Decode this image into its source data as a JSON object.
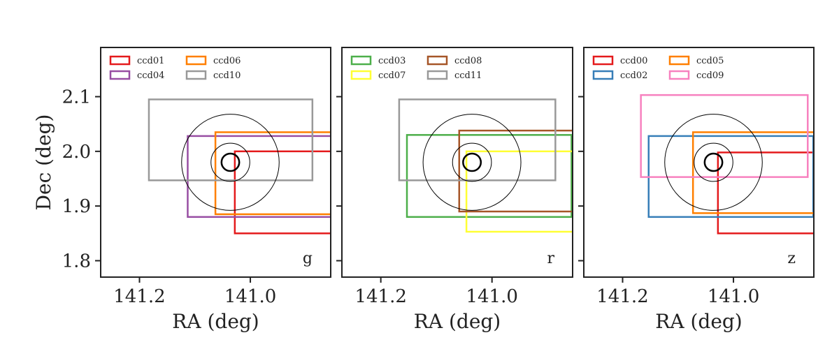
{
  "chart_data": [
    {
      "type": "footprint",
      "band": "g",
      "xlabel": "RA (deg)",
      "ylabel": "Dec (deg)",
      "xlim": [
        141.27,
        140.855
      ],
      "ylim": [
        1.77,
        2.19
      ],
      "xticks": [
        141.2,
        141.0
      ],
      "xtick_labels": [
        "141.2",
        "141.0"
      ],
      "yticks": [
        1.8,
        1.9,
        2.0,
        2.1
      ],
      "ytick_labels": [
        "1.8",
        "1.9",
        "2.0",
        "2.1"
      ],
      "center": {
        "ra": 141.036,
        "dec": 1.98
      },
      "circles_deg": [
        0.016,
        0.035,
        0.088
      ],
      "legend": {
        "position": "top-left",
        "ncol": 2
      },
      "ccds": [
        {
          "name": "ccd01",
          "color": "#e41a1c",
          "ra": [
            141.028,
            140.845
          ],
          "dec": [
            1.85,
            2.0
          ]
        },
        {
          "name": "ccd04",
          "color": "#984ea3",
          "ra": [
            141.113,
            140.845
          ],
          "dec": [
            1.88,
            2.028
          ]
        },
        {
          "name": "ccd06",
          "color": "#ff7f00",
          "ra": [
            141.063,
            140.845
          ],
          "dec": [
            1.885,
            2.035
          ]
        },
        {
          "name": "ccd10",
          "color": "#999999",
          "ra": [
            141.183,
            140.888
          ],
          "dec": [
            1.947,
            2.095
          ]
        }
      ]
    },
    {
      "type": "footprint",
      "band": "r",
      "xlabel": "RA (deg)",
      "ylabel": "",
      "xlim": [
        141.27,
        140.855
      ],
      "ylim": [
        1.77,
        2.19
      ],
      "xticks": [
        141.2,
        141.0
      ],
      "xtick_labels": [
        "141.2",
        "141.0"
      ],
      "yticks": [
        1.8,
        1.9,
        2.0,
        2.1
      ],
      "ytick_labels": [],
      "center": {
        "ra": 141.036,
        "dec": 1.98
      },
      "circles_deg": [
        0.016,
        0.035,
        0.088
      ],
      "legend": {
        "position": "top-left",
        "ncol": 2
      },
      "ccds": [
        {
          "name": "ccd03",
          "color": "#4daf4a",
          "ra": [
            141.153,
            140.857
          ],
          "dec": [
            1.88,
            2.03
          ]
        },
        {
          "name": "ccd07",
          "color": "#ffff33",
          "ra": [
            141.046,
            140.845
          ],
          "dec": [
            1.853,
            2.0
          ]
        },
        {
          "name": "ccd08",
          "color": "#a65628",
          "ra": [
            141.059,
            140.845
          ],
          "dec": [
            1.89,
            2.038
          ]
        },
        {
          "name": "ccd11",
          "color": "#999999",
          "ra": [
            141.167,
            140.886
          ],
          "dec": [
            1.947,
            2.095
          ]
        }
      ]
    },
    {
      "type": "footprint",
      "band": "z",
      "xlabel": "RA (deg)",
      "ylabel": "",
      "xlim": [
        141.27,
        140.855
      ],
      "ylim": [
        1.77,
        2.19
      ],
      "xticks": [
        141.2,
        141.0
      ],
      "xtick_labels": [
        "141.2",
        "141.0"
      ],
      "yticks": [
        1.8,
        1.9,
        2.0,
        2.1
      ],
      "ytick_labels": [],
      "center": {
        "ra": 141.036,
        "dec": 1.98
      },
      "circles_deg": [
        0.016,
        0.035,
        0.088
      ],
      "legend": {
        "position": "top-left",
        "ncol": 2
      },
      "ccds": [
        {
          "name": "ccd00",
          "color": "#e41a1c",
          "ra": [
            141.028,
            140.845
          ],
          "dec": [
            1.85,
            1.998
          ]
        },
        {
          "name": "ccd02",
          "color": "#377eb8",
          "ra": [
            141.153,
            140.856
          ],
          "dec": [
            1.88,
            2.028
          ]
        },
        {
          "name": "ccd05",
          "color": "#ff7f00",
          "ra": [
            141.073,
            140.845
          ],
          "dec": [
            1.887,
            2.035
          ]
        },
        {
          "name": "ccd09",
          "color": "#f781bf",
          "ra": [
            141.167,
            140.866
          ],
          "dec": [
            1.953,
            2.103
          ]
        }
      ]
    }
  ]
}
